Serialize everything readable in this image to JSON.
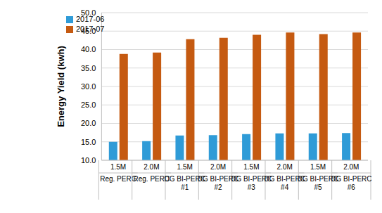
{
  "chart_data": {
    "type": "bar",
    "y_label": "Energy Yield (kwh)",
    "categories": [
      [
        "1.5M",
        "Reg. PERC"
      ],
      [
        "2.0M",
        "Reg. PERC"
      ],
      [
        "1.5M",
        "DG BI-PERC #1"
      ],
      [
        "2.0M",
        "DG BI-PERC #2"
      ],
      [
        "1.5M",
        "DG BI-PERC #3"
      ],
      [
        "2.0M",
        "DG BI-PERC #4"
      ],
      [
        "1.5M",
        "DG BI-PERC #5"
      ],
      [
        "2.0M",
        "DG BI-PERC #6"
      ]
    ],
    "series": [
      {
        "name": "2017-06",
        "color": "#2f9bd7",
        "values": [
          15.0,
          15.2,
          16.7,
          16.8,
          17.1,
          17.3,
          17.3,
          17.4
        ]
      },
      {
        "name": "2017-07",
        "color": "#c55a11",
        "values": [
          38.8,
          39.2,
          42.8,
          43.2,
          44.0,
          44.6,
          44.2,
          44.6
        ]
      }
    ],
    "ylim": [
      10,
      50
    ],
    "yticks": [
      {
        "value": 10,
        "label": "10.0"
      },
      {
        "value": 15,
        "label": "15.0"
      },
      {
        "value": 20,
        "label": "20.0"
      },
      {
        "value": 25,
        "label": "25.0"
      },
      {
        "value": 30,
        "label": "30.0"
      },
      {
        "value": 35,
        "label": "35.0"
      },
      {
        "value": 40,
        "label": "40.0"
      },
      {
        "value": 45,
        "label": "45.0"
      },
      {
        "value": 50,
        "label": "50.0"
      }
    ],
    "grid": true,
    "legend": "upper left"
  }
}
